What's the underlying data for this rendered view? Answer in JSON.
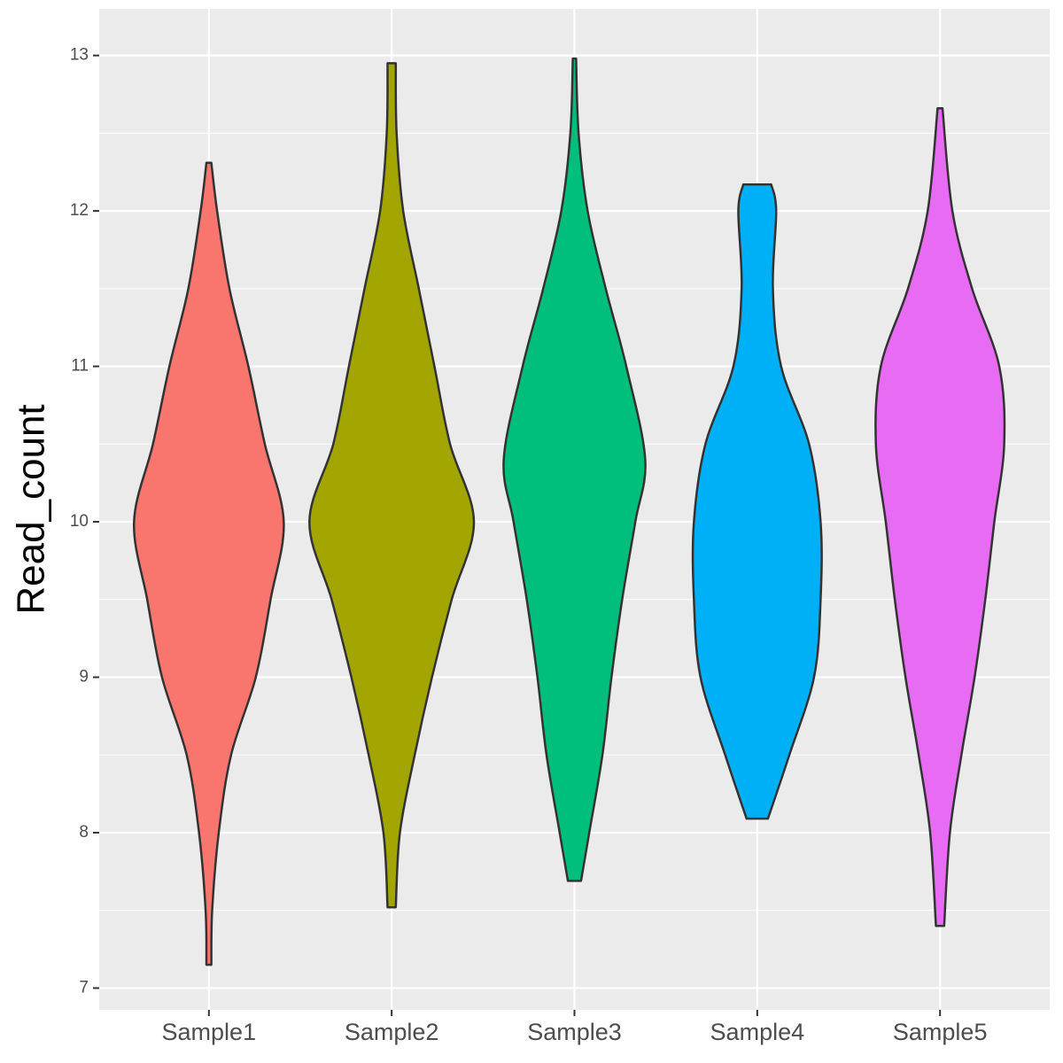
{
  "chart_data": {
    "type": "violin",
    "y_label": "Read_count",
    "categories": [
      "Sample1",
      "Sample2",
      "Sample3",
      "Sample4",
      "Sample5"
    ],
    "series": [
      {
        "color": "#F8766D",
        "y": [
          12.31,
          12.0,
          11.5,
          11.0,
          10.5,
          10.0,
          9.5,
          9.0,
          8.5,
          8.0,
          7.5,
          7.15
        ],
        "width": [
          0.03,
          0.1,
          0.25,
          0.48,
          0.68,
          0.91,
          0.75,
          0.57,
          0.27,
          0.12,
          0.04,
          0.03
        ]
      },
      {
        "color": "#A3A500",
        "y": [
          12.95,
          12.5,
          12.0,
          11.5,
          11.0,
          10.5,
          10.0,
          9.5,
          9.0,
          8.5,
          8.0,
          7.52
        ],
        "width": [
          0.05,
          0.06,
          0.14,
          0.33,
          0.52,
          0.71,
          1.0,
          0.73,
          0.49,
          0.28,
          0.1,
          0.05
        ]
      },
      {
        "color": "#00BF7D",
        "y": [
          12.98,
          12.5,
          12.0,
          11.5,
          11.0,
          10.4,
          10.0,
          9.5,
          9.0,
          8.5,
          8.0,
          7.69
        ],
        "width": [
          0.02,
          0.05,
          0.16,
          0.38,
          0.63,
          0.86,
          0.74,
          0.58,
          0.45,
          0.34,
          0.18,
          0.08
        ]
      },
      {
        "color": "#00B0F6",
        "y": [
          12.17,
          12.0,
          11.5,
          11.0,
          10.5,
          10.0,
          9.5,
          9.0,
          8.5,
          8.09
        ],
        "width": [
          0.17,
          0.23,
          0.19,
          0.29,
          0.63,
          0.77,
          0.77,
          0.69,
          0.39,
          0.13
        ]
      },
      {
        "color": "#E76BF3",
        "y": [
          12.66,
          12.0,
          11.5,
          11.0,
          10.5,
          10.0,
          9.5,
          9.0,
          8.5,
          8.0,
          7.4
        ],
        "width": [
          0.03,
          0.15,
          0.39,
          0.72,
          0.78,
          0.66,
          0.55,
          0.42,
          0.26,
          0.12,
          0.05
        ]
      }
    ],
    "ylim": [
      6.86,
      13.3
    ],
    "yticks": [
      7,
      8,
      9,
      10,
      11,
      12,
      13
    ],
    "grid": true,
    "minor_grid": true
  }
}
